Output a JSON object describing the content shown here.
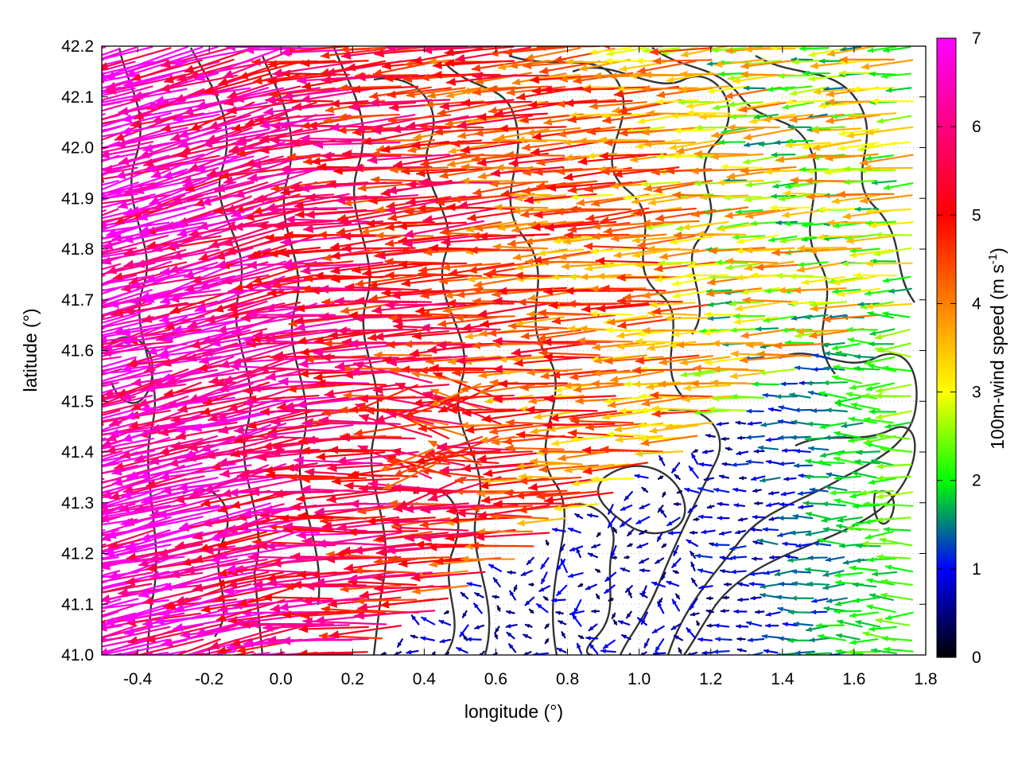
{
  "chart_data": {
    "type": "vector-field",
    "xlabel": "longitude (°)",
    "ylabel": "latitude (°)",
    "xlim": [
      -0.5,
      1.8
    ],
    "ylim": [
      41.0,
      42.2
    ],
    "xticks": [
      "-0.4",
      "-0.2",
      "0.0",
      "0.2",
      "0.4",
      "0.6",
      "0.8",
      "1.0",
      "1.2",
      "1.4",
      "1.6",
      "1.8"
    ],
    "yticks": [
      "41.0",
      "41.1",
      "41.2",
      "41.3",
      "41.4",
      "41.5",
      "41.6",
      "41.7",
      "41.8",
      "41.9",
      "42.0",
      "42.1",
      "42.2"
    ],
    "colorbar": {
      "label": "100m-wind speed (m s",
      "label_sup": "-1",
      "label_end": ")",
      "range": [
        0,
        7
      ],
      "ticks": [
        "0",
        "1",
        "2",
        "3",
        "4",
        "5",
        "6",
        "7"
      ],
      "colors": [
        "#000000",
        "#0000ff",
        "#00ff00",
        "#ffff00",
        "#ff8000",
        "#ff0000",
        "#ff00ff"
      ]
    },
    "grid": "dotted",
    "legend": "none",
    "contours": "terrain elevation isolines (dark gray)",
    "wind_regions": [
      {
        "region": "west / northwest",
        "direction": "from east (arrows point west)",
        "speed_ms": [
          5,
          7
        ]
      },
      {
        "region": "center",
        "direction": "from east",
        "speed_ms": [
          3,
          6
        ]
      },
      {
        "region": "southeast coast",
        "direction": "from east",
        "speed_ms": [
          0.5,
          2
        ]
      }
    ]
  }
}
